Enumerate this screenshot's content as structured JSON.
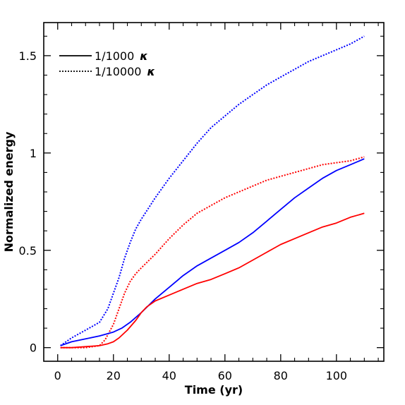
{
  "chart_data": {
    "type": "line",
    "title": "",
    "xlabel": "Time (yr)",
    "ylabel": "Normalized energy",
    "xlim": [
      -5,
      117
    ],
    "ylim": [
      -0.07,
      1.67
    ],
    "xticks": [
      0,
      20,
      40,
      60,
      80,
      100
    ],
    "yticks": [
      0,
      0.5,
      1,
      1.5
    ],
    "xtick_labels": [
      "0",
      "20",
      "40",
      "60",
      "80",
      "100"
    ],
    "ytick_labels": [
      "0",
      "0.5",
      "1",
      "1.5"
    ],
    "grid": false,
    "legend": {
      "placement": "top-left",
      "entries": [
        {
          "label": "1/1000",
          "symbol": "κ",
          "dash": "solid",
          "color": "#000000"
        },
        {
          "label": "1/10000",
          "symbol": "κ",
          "dash": "dotted",
          "color": "#000000"
        }
      ]
    },
    "series": [
      {
        "color": "#0000ff",
        "dash": "dotted",
        "x": [
          1,
          5,
          10,
          15,
          18,
          20,
          22,
          24,
          26,
          28,
          30,
          35,
          40,
          45,
          50,
          55,
          60,
          65,
          70,
          75,
          80,
          85,
          90,
          95,
          100,
          105,
          110
        ],
        "y": [
          0.01,
          0.05,
          0.09,
          0.13,
          0.2,
          0.28,
          0.36,
          0.46,
          0.54,
          0.61,
          0.66,
          0.77,
          0.87,
          0.96,
          1.05,
          1.13,
          1.19,
          1.25,
          1.3,
          1.35,
          1.39,
          1.43,
          1.47,
          1.5,
          1.53,
          1.56,
          1.6
        ]
      },
      {
        "color": "#ff0000",
        "dash": "dotted",
        "x": [
          1,
          5,
          10,
          15,
          17,
          20,
          22,
          24,
          26,
          28,
          30,
          35,
          40,
          45,
          50,
          55,
          60,
          65,
          70,
          75,
          80,
          85,
          90,
          95,
          100,
          105,
          110
        ],
        "y": [
          0.0,
          0.0,
          0.0,
          0.01,
          0.04,
          0.12,
          0.2,
          0.28,
          0.34,
          0.38,
          0.41,
          0.48,
          0.56,
          0.63,
          0.69,
          0.73,
          0.77,
          0.8,
          0.83,
          0.86,
          0.88,
          0.9,
          0.92,
          0.94,
          0.95,
          0.96,
          0.98
        ]
      },
      {
        "color": "#0000ff",
        "dash": "solid",
        "x": [
          1,
          5,
          10,
          15,
          20,
          23,
          26,
          30,
          35,
          40,
          45,
          50,
          55,
          60,
          65,
          70,
          75,
          80,
          85,
          90,
          95,
          100,
          105,
          110
        ],
        "y": [
          0.01,
          0.03,
          0.045,
          0.06,
          0.08,
          0.1,
          0.13,
          0.18,
          0.25,
          0.31,
          0.37,
          0.42,
          0.46,
          0.5,
          0.54,
          0.59,
          0.65,
          0.71,
          0.77,
          0.82,
          0.87,
          0.91,
          0.94,
          0.97
        ]
      },
      {
        "color": "#ff0000",
        "dash": "solid",
        "x": [
          1,
          5,
          10,
          15,
          18,
          20,
          22,
          25,
          28,
          30,
          32,
          35,
          40,
          45,
          50,
          55,
          60,
          65,
          70,
          75,
          80,
          85,
          90,
          95,
          100,
          105,
          110
        ],
        "y": [
          0.0,
          0.0,
          0.005,
          0.01,
          0.02,
          0.03,
          0.05,
          0.09,
          0.14,
          0.18,
          0.21,
          0.24,
          0.27,
          0.3,
          0.33,
          0.35,
          0.38,
          0.41,
          0.45,
          0.49,
          0.53,
          0.56,
          0.59,
          0.62,
          0.64,
          0.67,
          0.69
        ]
      }
    ]
  }
}
